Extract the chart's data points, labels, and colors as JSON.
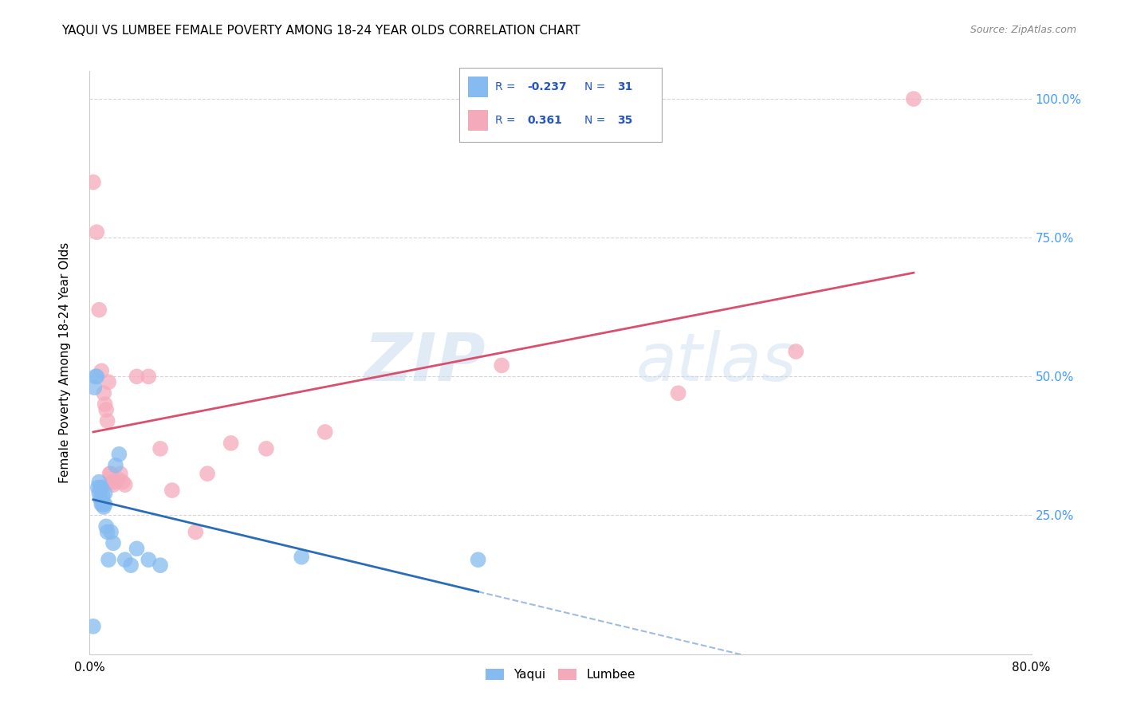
{
  "title": "YAQUI VS LUMBEE FEMALE POVERTY AMONG 18-24 YEAR OLDS CORRELATION CHART",
  "source": "Source: ZipAtlas.com",
  "ylabel": "Female Poverty Among 18-24 Year Olds",
  "xlim": [
    0.0,
    0.8
  ],
  "ylim": [
    0.0,
    1.05
  ],
  "x_ticks": [
    0.0,
    0.1,
    0.2,
    0.3,
    0.4,
    0.5,
    0.6,
    0.7,
    0.8
  ],
  "y_ticks": [
    0.0,
    0.25,
    0.5,
    0.75,
    1.0
  ],
  "y_tick_labels_right": [
    "",
    "25.0%",
    "50.0%",
    "75.0%",
    "100.0%"
  ],
  "yaqui_color": "#85BBF0",
  "lumbee_color": "#F5AABB",
  "yaqui_line_color": "#2B6CB8",
  "lumbee_line_color": "#D94F6E",
  "background_color": "#FFFFFF",
  "grid_color": "#CCCCCC",
  "watermark_zip": "ZIP",
  "watermark_atlas": "atlas",
  "yaqui_x": [
    0.003,
    0.004,
    0.005,
    0.006,
    0.007,
    0.008,
    0.008,
    0.009,
    0.009,
    0.01,
    0.01,
    0.011,
    0.011,
    0.012,
    0.012,
    0.013,
    0.013,
    0.014,
    0.015,
    0.016,
    0.018,
    0.02,
    0.022,
    0.025,
    0.03,
    0.035,
    0.04,
    0.05,
    0.06,
    0.18,
    0.33
  ],
  "yaqui_y": [
    0.05,
    0.48,
    0.5,
    0.5,
    0.3,
    0.29,
    0.31,
    0.28,
    0.3,
    0.27,
    0.3,
    0.27,
    0.285,
    0.265,
    0.27,
    0.27,
    0.29,
    0.23,
    0.22,
    0.17,
    0.22,
    0.2,
    0.34,
    0.36,
    0.17,
    0.16,
    0.19,
    0.17,
    0.16,
    0.175,
    0.17
  ],
  "lumbee_x": [
    0.003,
    0.006,
    0.008,
    0.01,
    0.012,
    0.013,
    0.014,
    0.015,
    0.016,
    0.017,
    0.018,
    0.019,
    0.02,
    0.022,
    0.024,
    0.026,
    0.028,
    0.03,
    0.04,
    0.05,
    0.06,
    0.07,
    0.09,
    0.1,
    0.12,
    0.15,
    0.2,
    0.35,
    0.5,
    0.6,
    0.7
  ],
  "lumbee_y": [
    0.85,
    0.76,
    0.62,
    0.51,
    0.47,
    0.45,
    0.44,
    0.42,
    0.49,
    0.325,
    0.325,
    0.31,
    0.305,
    0.31,
    0.315,
    0.325,
    0.31,
    0.305,
    0.5,
    0.5,
    0.37,
    0.295,
    0.22,
    0.325,
    0.38,
    0.37,
    0.4,
    0.52,
    0.47,
    0.545,
    1.0
  ],
  "yaqui_line_start_x": 0.003,
  "yaqui_line_end_x": 0.33,
  "lumbee_line_start_x": 0.003,
  "lumbee_line_end_x": 0.7
}
